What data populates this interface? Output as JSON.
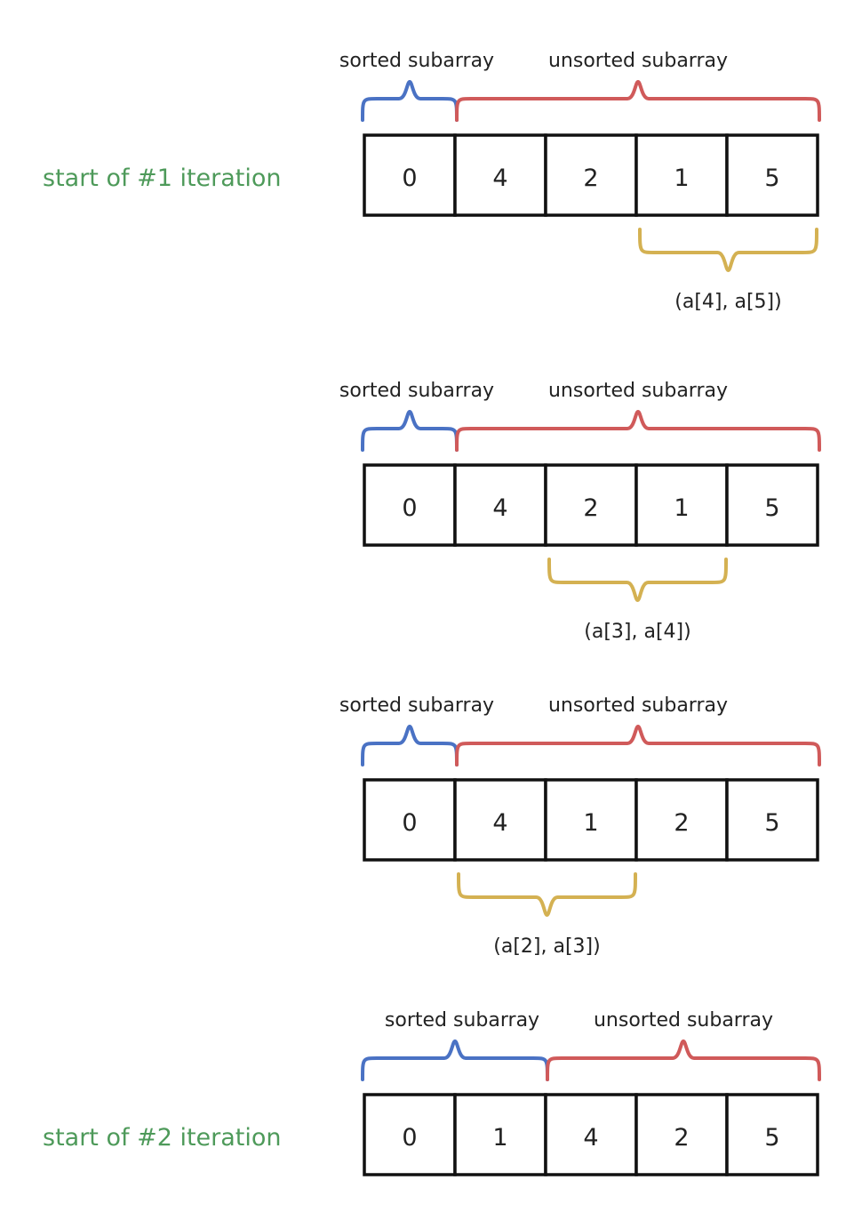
{
  "colors": {
    "sorted": "#4a72c4",
    "unsorted": "#d05a5a",
    "pair": "#d4b152",
    "label_green": "#4e9a5a"
  },
  "steps": [
    {
      "iteration_label": "start of #1 iteration",
      "cells": [
        "0",
        "4",
        "2",
        "1",
        "5"
      ],
      "sorted_count": 1,
      "sorted_label": "sorted subarray",
      "unsorted_label": "unsorted subarray",
      "compare_start": 3,
      "compare_label": "(a[4], a[5])"
    },
    {
      "iteration_label": "",
      "cells": [
        "0",
        "4",
        "2",
        "1",
        "5"
      ],
      "sorted_count": 1,
      "sorted_label": "sorted subarray",
      "unsorted_label": "unsorted subarray",
      "compare_start": 2,
      "compare_label": "(a[3], a[4])"
    },
    {
      "iteration_label": "",
      "cells": [
        "0",
        "4",
        "1",
        "2",
        "5"
      ],
      "sorted_count": 1,
      "sorted_label": "sorted subarray",
      "unsorted_label": "unsorted subarray",
      "compare_start": 1,
      "compare_label": "(a[2], a[3])"
    },
    {
      "iteration_label": "start of #2 iteration",
      "cells": [
        "0",
        "1",
        "4",
        "2",
        "5"
      ],
      "sorted_count": 2,
      "sorted_label": "sorted subarray",
      "unsorted_label": "unsorted subarray",
      "compare_start": null,
      "compare_label": ""
    }
  ]
}
